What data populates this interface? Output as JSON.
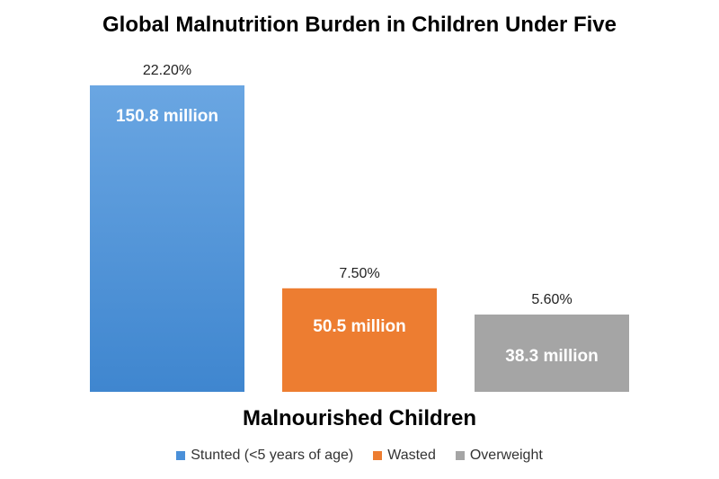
{
  "chart_data": {
    "type": "bar",
    "title": "Global Malnutrition Burden in Children Under Five",
    "xlabel": "Malnourished Children",
    "ylabel": "",
    "ylim": [
      0,
      23
    ],
    "grid": false,
    "legend_position": "bottom",
    "series": [
      {
        "name": "Stunted (<5 years of age)",
        "value": 22.2,
        "percent_label": "22.20%",
        "inner_label": "150.8 million",
        "color": "#4a90d9"
      },
      {
        "name": "Wasted",
        "value": 7.5,
        "percent_label": "7.50%",
        "inner_label": "50.5 million",
        "color": "#ed7d31"
      },
      {
        "name": "Overweight",
        "value": 5.6,
        "percent_label": "5.60%",
        "inner_label": "38.3 million",
        "color": "#a5a5a5"
      }
    ]
  }
}
